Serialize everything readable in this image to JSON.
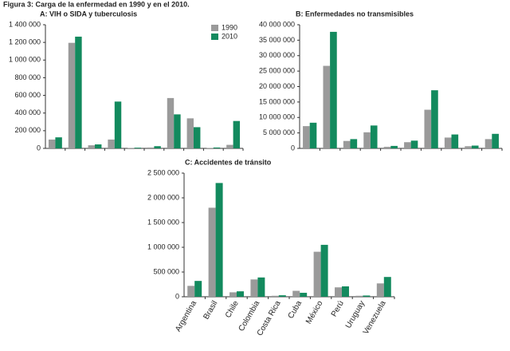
{
  "title": "Figura 3: Carga de la enfermedad en 1990 y en el 2010.",
  "chart_data": [
    {
      "type": "bar",
      "title": "A: VIH o SIDA y tuberculosis",
      "categories": [
        null,
        null,
        null,
        null,
        null,
        null,
        null,
        null,
        null,
        null
      ],
      "series": [
        {
          "name": "1990",
          "color": "#9a9a9a",
          "values": [
            100000,
            1195000,
            35000,
            100000,
            5000,
            10000,
            570000,
            340000,
            5000,
            40000
          ]
        },
        {
          "name": "2010",
          "color": "#138a5e",
          "values": [
            125000,
            1265000,
            45000,
            530000,
            8000,
            25000,
            385000,
            240000,
            10000,
            310000
          ]
        }
      ],
      "ylim": [
        0,
        1400000
      ],
      "yticks": [
        0,
        {
          "value": 200000,
          "label": "200 000"
        },
        {
          "value": 400000,
          "label": "400 000"
        },
        {
          "value": 600000,
          "label": "600 000"
        },
        {
          "value": 800000,
          "label": "800 000"
        },
        {
          "value": 1000000,
          "label": "1 000 000"
        },
        {
          "value": 1200000,
          "label": "1 200 000"
        },
        {
          "value": 1400000,
          "label": "1 400 000"
        }
      ],
      "legend": "upper right"
    },
    {
      "type": "bar",
      "title": "B: Enfermedades no transmisibles",
      "categories": [
        null,
        null,
        null,
        null,
        null,
        null,
        null,
        null,
        null,
        null
      ],
      "series": [
        {
          "color": "#9a9a9a",
          "values": [
            7200000,
            26700000,
            2400000,
            5200000,
            500000,
            2000000,
            12500000,
            3500000,
            700000,
            3000000
          ]
        },
        {
          "color": "#138a5e",
          "values": [
            8300000,
            37700000,
            3000000,
            7400000,
            800000,
            2500000,
            18800000,
            4500000,
            900000,
            4700000
          ]
        }
      ],
      "ylim": [
        0,
        40000000
      ],
      "yticks": [
        0,
        {
          "value": 5000000,
          "label": "5 000 000"
        },
        {
          "value": 10000000,
          "label": "10 000 000"
        },
        {
          "value": 15000000,
          "label": "15 000 000"
        },
        {
          "value": 20000000,
          "label": "20 000 000"
        },
        {
          "value": 25000000,
          "label": "25 000 000"
        },
        {
          "value": 30000000,
          "label": "30 000 000"
        },
        {
          "value": 35000000,
          "label": "35 000 000"
        },
        {
          "value": 40000000,
          "label": "40 000 000"
        }
      ]
    },
    {
      "type": "bar",
      "title": "C: Accidentes de tránsito",
      "categories": [
        "Argentina",
        "Brasil",
        "Chile",
        "Colombia",
        "Costa Rica",
        "Cuba",
        "México",
        "Perú",
        "Uruguay",
        "Venezuela"
      ],
      "series": [
        {
          "color": "#9a9a9a",
          "values": [
            220000,
            1800000,
            90000,
            350000,
            20000,
            120000,
            910000,
            190000,
            20000,
            270000
          ]
        },
        {
          "color": "#138a5e",
          "values": [
            320000,
            2300000,
            110000,
            390000,
            30000,
            80000,
            1050000,
            210000,
            25000,
            400000
          ]
        }
      ],
      "ylim": [
        0,
        2500000
      ],
      "yticks": [
        0,
        {
          "value": 500000,
          "label": "500 000"
        },
        {
          "value": 1000000,
          "label": "1 000 000"
        },
        {
          "value": 1500000,
          "label": "1 500 000"
        },
        {
          "value": 2000000,
          "label": "2 000 000"
        },
        {
          "value": 2500000,
          "label": "2 500 000"
        }
      ]
    }
  ]
}
